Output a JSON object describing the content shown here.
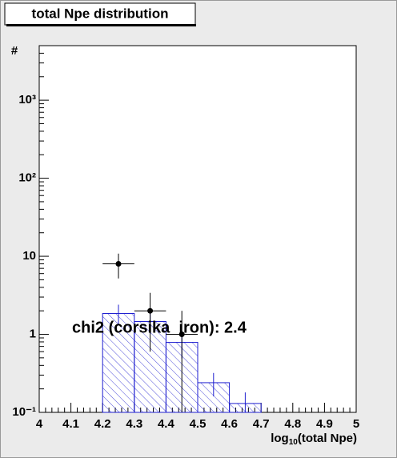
{
  "chart_data": {
    "type": "histogram",
    "title": "total Npe distribution",
    "x_label": {
      "main": "log",
      "sub": "10",
      "rest": "(total Npe)"
    },
    "y_label": "#",
    "annotation": "chi2 (corsika_iron): 2.4",
    "log_y": true,
    "xlim": [
      4,
      5
    ],
    "xticks": [
      4,
      4.1,
      4.2,
      4.3,
      4.4,
      4.5,
      4.6,
      4.7,
      4.8,
      4.9,
      5
    ],
    "ylim": [
      0.1,
      5000
    ],
    "yticks": [
      {
        "value": 0.1,
        "label": "10⁻¹"
      },
      1,
      10,
      {
        "value": 100,
        "label": "10²"
      },
      {
        "value": 1000,
        "label": "10³"
      }
    ],
    "histogram": {
      "color": "#1f1fd0",
      "bins": [
        4.2,
        4.3,
        4.4,
        4.5,
        4.6,
        4.7
      ],
      "values": [
        1.85,
        1.46,
        0.79,
        0.24,
        0.13
      ],
      "errors": [
        0.55,
        0.45,
        0.3,
        0.08,
        0.05
      ]
    },
    "points": {
      "color": "#000000",
      "x": [
        4.25,
        4.35,
        4.45
      ],
      "values": [
        8,
        2,
        1
      ],
      "errors": [
        2.8,
        1.4,
        1
      ]
    }
  }
}
